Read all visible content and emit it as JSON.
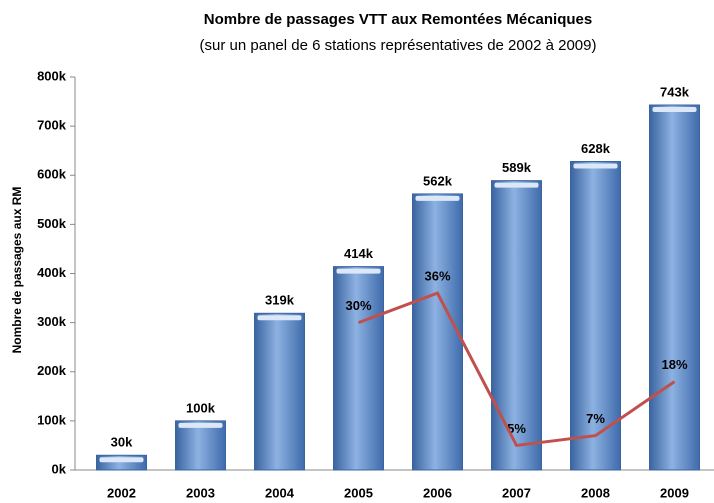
{
  "chart_data": {
    "type": "bar",
    "title": "Nombre de passages VTT aux Remontées Mécaniques",
    "subtitle": "(sur un panel de 6 stations représentatives de 2002 à 2009)",
    "y_label": "Nombre de passages aux RM",
    "categories": [
      "2002",
      "2003",
      "2004",
      "2005",
      "2006",
      "2007",
      "2008",
      "2009"
    ],
    "series": [
      {
        "type": "bar",
        "color": "#4f81bd",
        "values": [
          30000,
          100000,
          319000,
          414000,
          562000,
          589000,
          628000,
          743000
        ],
        "value_labels": [
          "30k",
          "100k",
          "319k",
          "414k",
          "562k",
          "589k",
          "628k",
          "743k"
        ]
      },
      {
        "type": "line",
        "axis": "y2",
        "color": "#c0504d",
        "values": [
          null,
          null,
          null,
          30,
          36,
          5,
          7,
          18
        ],
        "value_labels": [
          null,
          null,
          null,
          "30%",
          "36%",
          "5%",
          "7%",
          "18%"
        ]
      }
    ],
    "ylim": [
      0,
      800000
    ],
    "yticks": [
      {
        "value": 0,
        "label": "0k"
      },
      {
        "value": 100000,
        "label": "100k"
      },
      {
        "value": 200000,
        "label": "200k"
      },
      {
        "value": 300000,
        "label": "300k"
      },
      {
        "value": 400000,
        "label": "400k"
      },
      {
        "value": 500000,
        "label": "500k"
      },
      {
        "value": 600000,
        "label": "600k"
      },
      {
        "value": 700000,
        "label": "700k"
      },
      {
        "value": 800000,
        "label": "800k"
      }
    ],
    "y2lim": [
      0,
      80
    ],
    "grid": false
  }
}
